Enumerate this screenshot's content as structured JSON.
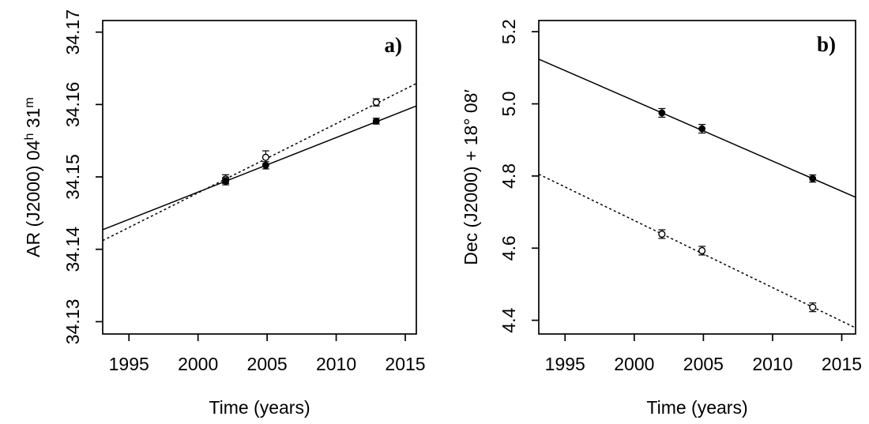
{
  "figure": {
    "background_color": "#ffffff",
    "foreground_color": "#000000",
    "description": "Two-panel scatter plot of source position vs time with linear proper-motion fits"
  },
  "chart_data": [
    {
      "type": "scatter",
      "panel_label": "a)",
      "xlabel": "Time (years)",
      "ylabel": "AR (J2000) 04h 31m",
      "ylabel_parts": [
        {
          "text": "AR  (J2000) 04"
        },
        {
          "text": "h",
          "sup": true
        },
        {
          "text": " 31"
        },
        {
          "text": "m",
          "sup": true
        }
      ],
      "xlim": [
        1993.1,
        2015.8
      ],
      "ylim": [
        34.1283,
        34.1716
      ],
      "xticks": [
        1995,
        2000,
        2005,
        2010,
        2015
      ],
      "xtick_labels": [
        "1995",
        "2000",
        "2005",
        "2010",
        "2015"
      ],
      "yticks": [
        34.13,
        34.14,
        34.15,
        34.16,
        34.17
      ],
      "ytick_labels": [
        "34.13",
        "34.14",
        "34.15",
        "34.16",
        "34.17"
      ],
      "grid": false,
      "legend": "none",
      "x": [
        2002.0,
        2004.9,
        2012.9
      ],
      "series": [
        {
          "name": "open-circles-dashed",
          "marker": "open-circle",
          "line_style": "dashed",
          "values": [
            34.1497,
            34.1527,
            34.1603
          ],
          "errors": [
            0.0006,
            0.0009,
            0.0005
          ],
          "fit_line": {
            "x1": 1993.1,
            "y1": 34.1412,
            "x2": 2015.8,
            "y2": 34.1629
          }
        },
        {
          "name": "filled-circles-solid",
          "marker": "filled-circle",
          "line_style": "solid",
          "values": [
            34.1494,
            34.1516,
            34.1577
          ],
          "errors": [
            0.0005,
            0.0005,
            0.0004
          ],
          "fit_line": {
            "x1": 1993.1,
            "y1": 34.1427,
            "x2": 2015.8,
            "y2": 34.1598
          }
        }
      ]
    },
    {
      "type": "scatter",
      "panel_label": "b)",
      "xlabel": "Time (years)",
      "ylabel": "Dec (J2000) + 18° 08′",
      "ylabel_parts": [
        {
          "text": "Dec (J2000) + 18° 08′"
        }
      ],
      "xlim": [
        1993.1,
        2016.0
      ],
      "ylim": [
        4.362,
        5.231
      ],
      "xticks": [
        1995,
        2000,
        2005,
        2010,
        2015
      ],
      "xtick_labels": [
        "1995",
        "2000",
        "2005",
        "2010",
        "2015"
      ],
      "yticks": [
        4.4,
        4.6,
        4.8,
        5.0,
        5.2
      ],
      "ytick_labels": [
        "4.4",
        "4.6",
        "4.8",
        "5.0",
        "5.2"
      ],
      "grid": false,
      "legend": "none",
      "x": [
        2002.0,
        2004.9,
        2012.9
      ],
      "series": [
        {
          "name": "open-circles-dashed",
          "marker": "open-circle",
          "line_style": "dashed",
          "values": [
            4.639,
            4.593,
            4.436
          ],
          "errors": [
            0.012,
            0.012,
            0.012
          ],
          "fit_line": {
            "x1": 1993.1,
            "y1": 4.805,
            "x2": 2016.0,
            "y2": 4.379
          }
        },
        {
          "name": "filled-circles-solid",
          "marker": "filled-circle",
          "line_style": "solid",
          "values": [
            4.975,
            4.931,
            4.793
          ],
          "errors": [
            0.012,
            0.012,
            0.01
          ],
          "fit_line": {
            "x1": 1993.1,
            "y1": 5.124,
            "x2": 2016.0,
            "y2": 4.741
          }
        }
      ]
    }
  ]
}
